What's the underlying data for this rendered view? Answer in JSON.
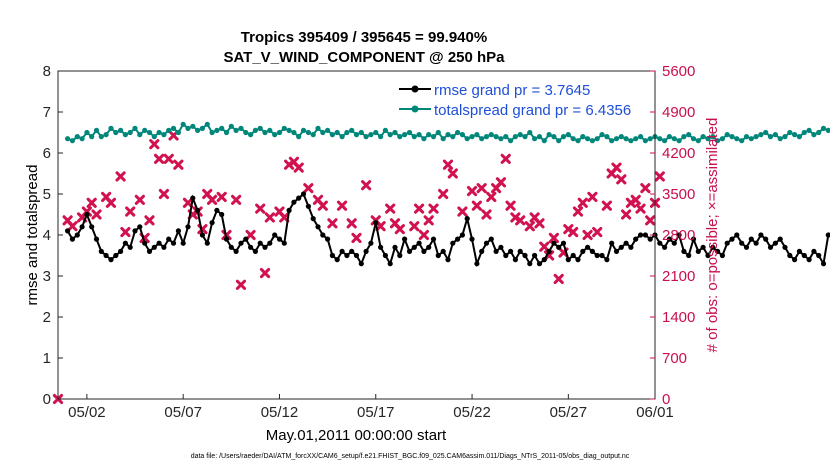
{
  "chart_data": {
    "type": "line",
    "title": "Tropics 395409 / 395645 = 99.940%",
    "subtitle": "SAT_V_WIND_COMPONENT @ 250 hPa",
    "xlabel": "May.01,2011 00:00:00 start",
    "ylabel_left": "rmse and totalspread",
    "ylabel_right": "# of obs: o=possible; ×=assimilated",
    "footnote": "data file: /Users/raeder/DAI/ATM_forcXX/CAM6_setup/f.e21.FHIST_BGC.f09_025.CAM6assim.011/Diags_NTrS_2011-05/obs_diag_output.nc",
    "xlim": [
      0.5,
      31.5
    ],
    "xticks": [
      {
        "v": 2,
        "label": "05/02"
      },
      {
        "v": 7,
        "label": "05/07"
      },
      {
        "v": 12,
        "label": "05/12"
      },
      {
        "v": 17,
        "label": "05/17"
      },
      {
        "v": 22,
        "label": "05/22"
      },
      {
        "v": 27,
        "label": "05/27"
      },
      {
        "v": 32,
        "label": "06/01"
      }
    ],
    "ylim_left": [
      0,
      8
    ],
    "yticks_left": [
      "0",
      "1",
      "2",
      "3",
      "4",
      "5",
      "6",
      "7",
      "8"
    ],
    "ylim_right": [
      0,
      5600
    ],
    "yticks_right": [
      "0",
      "700",
      "1400",
      "2100",
      "2800",
      "3500",
      "4200",
      "4900",
      "5600"
    ],
    "legend_position": "top-right",
    "colors": {
      "rmse": "#000000",
      "spread": "#00877a",
      "obs": "#d1124f",
      "right_axis": "#c8104c"
    },
    "x_start": 1,
    "x_step": 0.25,
    "series": [
      {
        "name": "rmse grand pr = 3.7645",
        "marker": "circle",
        "values": [
          4.1,
          3.9,
          4.0,
          4.2,
          4.5,
          4.2,
          3.9,
          3.6,
          3.5,
          3.4,
          3.5,
          3.6,
          3.8,
          3.7,
          4.1,
          4.2,
          3.8,
          3.6,
          3.7,
          3.8,
          3.7,
          3.9,
          3.8,
          4.1,
          3.8,
          4.2,
          4.9,
          4.6,
          4.0,
          3.8,
          4.3,
          4.6,
          4.5,
          3.9,
          3.7,
          3.6,
          3.8,
          3.9,
          3.7,
          3.6,
          3.8,
          3.7,
          3.8,
          4.0,
          3.9,
          3.8,
          4.6,
          4.8,
          4.9,
          5.0,
          4.7,
          4.4,
          4.2,
          4.0,
          3.9,
          3.5,
          3.4,
          3.6,
          3.5,
          3.6,
          3.5,
          3.3,
          3.6,
          3.8,
          4.3,
          3.7,
          3.5,
          3.3,
          3.7,
          3.5,
          3.9,
          3.6,
          3.7,
          3.8,
          3.6,
          3.7,
          3.9,
          3.5,
          3.6,
          3.4,
          3.8,
          3.9,
          4.0,
          4.4,
          3.9,
          3.3,
          3.6,
          3.8,
          3.9,
          3.6,
          3.7,
          3.5,
          3.6,
          3.4,
          3.6,
          3.5,
          3.3,
          3.5,
          3.3,
          3.4,
          3.6,
          3.8,
          3.7,
          3.8,
          3.4,
          3.5,
          3.4,
          3.6,
          3.7,
          3.6,
          3.5,
          3.5,
          3.4,
          3.8,
          3.6,
          3.7,
          3.8,
          3.7,
          3.9,
          4.0,
          4.0,
          3.9,
          4.0,
          3.8,
          3.7,
          3.9,
          3.8,
          4.0,
          3.6,
          3.5,
          3.9,
          3.6,
          3.7,
          3.5,
          3.7,
          3.6,
          3.5,
          3.8,
          3.9,
          4.0,
          3.8,
          3.7,
          3.9,
          3.8,
          4.0,
          3.9,
          3.7,
          3.8,
          3.9,
          3.7,
          3.5,
          3.4,
          3.6,
          3.5,
          3.4,
          3.6,
          3.5,
          3.3,
          4.0,
          4.0,
          3.5,
          3.4,
          3.4,
          3.3
        ]
      },
      {
        "name": "totalspread grand pr = 6.4356",
        "marker": "circle",
        "values": [
          6.35,
          6.3,
          6.4,
          6.35,
          6.5,
          6.4,
          6.55,
          6.4,
          6.45,
          6.6,
          6.5,
          6.55,
          6.45,
          6.5,
          6.6,
          6.45,
          6.55,
          6.5,
          6.4,
          6.5,
          6.45,
          6.55,
          6.6,
          6.5,
          6.7,
          6.6,
          6.65,
          6.55,
          6.6,
          6.7,
          6.5,
          6.55,
          6.6,
          6.5,
          6.65,
          6.55,
          6.6,
          6.5,
          6.45,
          6.55,
          6.6,
          6.5,
          6.55,
          6.45,
          6.5,
          6.6,
          6.55,
          6.5,
          6.4,
          6.55,
          6.5,
          6.45,
          6.6,
          6.5,
          6.55,
          6.45,
          6.5,
          6.4,
          6.5,
          6.55,
          6.45,
          6.5,
          6.4,
          6.45,
          6.5,
          6.4,
          6.55,
          6.45,
          6.5,
          6.4,
          6.45,
          6.5,
          6.4,
          6.45,
          6.35,
          6.45,
          6.4,
          6.5,
          6.35,
          6.45,
          6.4,
          6.5,
          6.45,
          6.35,
          6.4,
          6.45,
          6.35,
          6.4,
          6.45,
          6.4,
          6.35,
          6.4,
          6.3,
          6.4,
          6.45,
          6.4,
          6.5,
          6.35,
          6.4,
          6.3,
          6.45,
          6.4,
          6.3,
          6.4,
          6.45,
          6.35,
          6.3,
          6.4,
          6.35,
          6.3,
          6.35,
          6.45,
          6.4,
          6.3,
          6.35,
          6.4,
          6.35,
          6.3,
          6.35,
          6.4,
          6.3,
          6.35,
          6.4,
          6.35,
          6.3,
          6.4,
          6.35,
          6.3,
          6.4,
          6.45,
          6.35,
          6.3,
          6.4,
          6.35,
          6.4,
          6.3,
          6.35,
          6.45,
          6.4,
          6.35,
          6.3,
          6.4,
          6.35,
          6.4,
          6.45,
          6.5,
          6.4,
          6.45,
          6.35,
          6.4,
          6.5,
          6.45,
          6.4,
          6.5,
          6.55,
          6.45,
          6.5,
          6.6,
          6.55,
          6.6,
          6.55,
          6.6
        ]
      }
    ],
    "obs_assimilated": {
      "name": "obs assimilated",
      "marker": "x",
      "points": [
        [
          0.5,
          0
        ],
        [
          1,
          3050
        ],
        [
          1.25,
          2950
        ],
        [
          1.75,
          3100
        ],
        [
          2,
          3200
        ],
        [
          2.25,
          3350
        ],
        [
          2.5,
          3150
        ],
        [
          3,
          3450
        ],
        [
          3.25,
          3350
        ],
        [
          3.75,
          3800
        ],
        [
          4,
          2850
        ],
        [
          4.25,
          3200
        ],
        [
          4.75,
          3400
        ],
        [
          5,
          2750
        ],
        [
          5.25,
          3050
        ],
        [
          5.5,
          4350
        ],
        [
          5.75,
          4100
        ],
        [
          6,
          3500
        ],
        [
          6.25,
          4100
        ],
        [
          6.5,
          4500
        ],
        [
          6.75,
          4000
        ],
        [
          7.25,
          3350
        ],
        [
          7.5,
          3150
        ],
        [
          7.75,
          3200
        ],
        [
          8,
          2900
        ],
        [
          8.25,
          3500
        ],
        [
          8.5,
          3400
        ],
        [
          9,
          3450
        ],
        [
          9.25,
          2800
        ],
        [
          9.75,
          3400
        ],
        [
          10,
          1950
        ],
        [
          10.5,
          2800
        ],
        [
          11,
          3250
        ],
        [
          11.25,
          2150
        ],
        [
          11.5,
          3100
        ],
        [
          12,
          3200
        ],
        [
          12.25,
          3100
        ],
        [
          12.5,
          4000
        ],
        [
          12.75,
          4050
        ],
        [
          13,
          3950
        ],
        [
          13.5,
          3600
        ],
        [
          14,
          3400
        ],
        [
          14.25,
          3300
        ],
        [
          14.75,
          3000
        ],
        [
          15.25,
          3300
        ],
        [
          15.75,
          3000
        ],
        [
          16,
          2750
        ],
        [
          16.5,
          3650
        ],
        [
          17,
          3050
        ],
        [
          17.25,
          2950
        ],
        [
          17.75,
          3250
        ],
        [
          18,
          3000
        ],
        [
          18.25,
          2900
        ],
        [
          19,
          2950
        ],
        [
          19.25,
          3250
        ],
        [
          19.5,
          2800
        ],
        [
          19.75,
          3050
        ],
        [
          20,
          3250
        ],
        [
          20.5,
          3500
        ],
        [
          20.75,
          4000
        ],
        [
          21,
          3850
        ],
        [
          21.5,
          3200
        ],
        [
          22,
          3550
        ],
        [
          22.25,
          3300
        ],
        [
          22.5,
          3600
        ],
        [
          22.75,
          3150
        ],
        [
          23,
          3450
        ],
        [
          23.25,
          3600
        ],
        [
          23.5,
          3700
        ],
        [
          23.75,
          4100
        ],
        [
          24,
          3300
        ],
        [
          24.25,
          3100
        ],
        [
          24.5,
          3050
        ],
        [
          25,
          2950
        ],
        [
          25.25,
          3100
        ],
        [
          25.5,
          3000
        ],
        [
          25.75,
          2600
        ],
        [
          26,
          2450
        ],
        [
          26.25,
          2750
        ],
        [
          26.5,
          2050
        ],
        [
          26.75,
          2500
        ],
        [
          27,
          2900
        ],
        [
          27.25,
          2850
        ],
        [
          27.5,
          3200
        ],
        [
          27.75,
          3350
        ],
        [
          28,
          2800
        ],
        [
          28.25,
          3450
        ],
        [
          28.5,
          2850
        ],
        [
          29,
          3300
        ],
        [
          29.25,
          3850
        ],
        [
          29.5,
          3950
        ],
        [
          29.75,
          3750
        ],
        [
          30,
          3150
        ],
        [
          30.25,
          3350
        ],
        [
          30.5,
          3400
        ],
        [
          30.75,
          3250
        ],
        [
          31,
          3600
        ],
        [
          31.25,
          3050
        ],
        [
          31.5,
          3350
        ],
        [
          31.75,
          3800
        ]
      ]
    }
  }
}
